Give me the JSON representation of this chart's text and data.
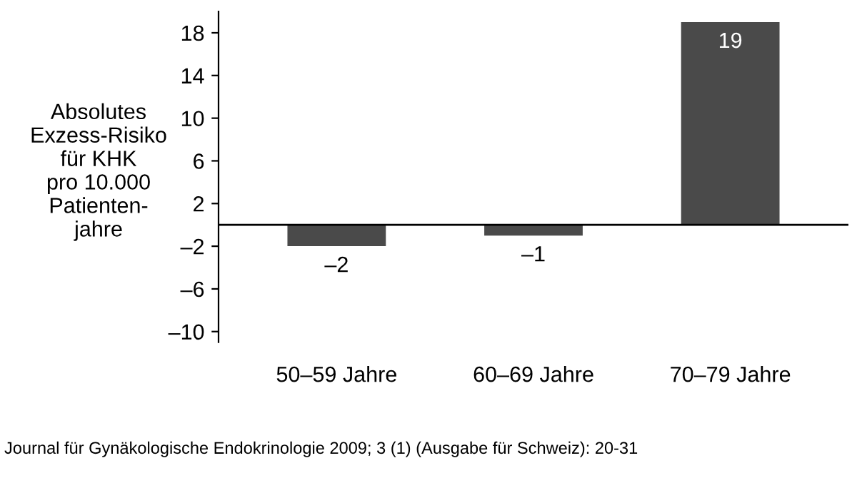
{
  "chart_data": {
    "type": "bar",
    "ylabel": "Absolutes\nExzess-Risiko\nfür KHK\npro 10.000\nPatienten-\njahre",
    "categories": [
      "50–59 Jahre",
      "60–69 Jahre",
      "70–79 Jahre"
    ],
    "values": [
      -2,
      -1,
      19
    ],
    "color": "#4a4a4a",
    "value_labels": [
      "–2",
      "–1",
      "19"
    ],
    "ylim": [
      -11,
      20
    ],
    "yticks": [
      {
        "value": -10,
        "label": "–10"
      },
      {
        "value": -6,
        "label": "–6"
      },
      {
        "value": -2,
        "label": "–2"
      },
      2,
      6,
      10,
      14,
      18
    ],
    "ref_lines": [
      {
        "axis": "y",
        "value": 0,
        "color": "#000000"
      }
    ],
    "grid": false,
    "annotations": [
      "Journal für Gynäkologische Endokrinologie 2009; 3 (1) (Ausgabe für Schweiz): 20-31"
    ]
  }
}
